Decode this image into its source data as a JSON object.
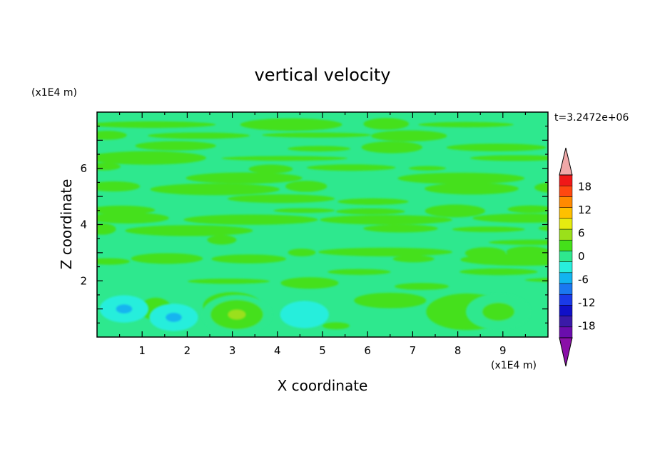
{
  "chart_data": {
    "type": "heatmap",
    "title": "vertical velocity",
    "xlabel": "X coordinate",
    "ylabel": "Z coordinate",
    "x_unit": "(x1E4 m)",
    "y_unit": "(x1E4 m)",
    "time_label": "t=3.2472e+06",
    "xlim": [
      0,
      10
    ],
    "ylim": [
      0,
      8
    ],
    "x_ticks": [
      1,
      2,
      3,
      4,
      5,
      6,
      7,
      8,
      9
    ],
    "y_ticks": [
      2,
      4,
      6
    ],
    "grid": false,
    "colorbar": {
      "position": "right",
      "levels": [
        -21,
        -18,
        -15,
        -12,
        -9,
        -6,
        -3,
        0,
        3,
        6,
        9,
        12,
        15,
        18,
        21
      ],
      "tick_labels": [
        "18",
        "12",
        "6",
        "0",
        "-6",
        "-12",
        "-18"
      ],
      "tick_values": [
        18,
        12,
        6,
        0,
        -6,
        -12,
        -18
      ],
      "colors": [
        "#6a0dad",
        "#3a1aa8",
        "#1010c8",
        "#1a3ae8",
        "#1a78f0",
        "#12b4f0",
        "#28eedc",
        "#2ee88e",
        "#44e01a",
        "#9be01a",
        "#e6ec10",
        "#ffc000",
        "#ff8a00",
        "#ff4810",
        "#f01818"
      ],
      "extend_low_color": "#8a10a8",
      "extend_high_color": "#f0a8a8"
    },
    "features": [
      {
        "name": "updraft",
        "x": 3.1,
        "z": 0.8,
        "value": 7
      },
      {
        "name": "downdraft",
        "x": 0.6,
        "z": 1.0,
        "value": -5
      },
      {
        "name": "downdraft",
        "x": 1.7,
        "z": 0.7,
        "value": -5
      },
      {
        "name": "downdraft",
        "x": 4.6,
        "z": 0.8,
        "value": -4
      },
      {
        "name": "updraft",
        "x": 8.9,
        "z": 0.9,
        "value": 4
      }
    ]
  }
}
